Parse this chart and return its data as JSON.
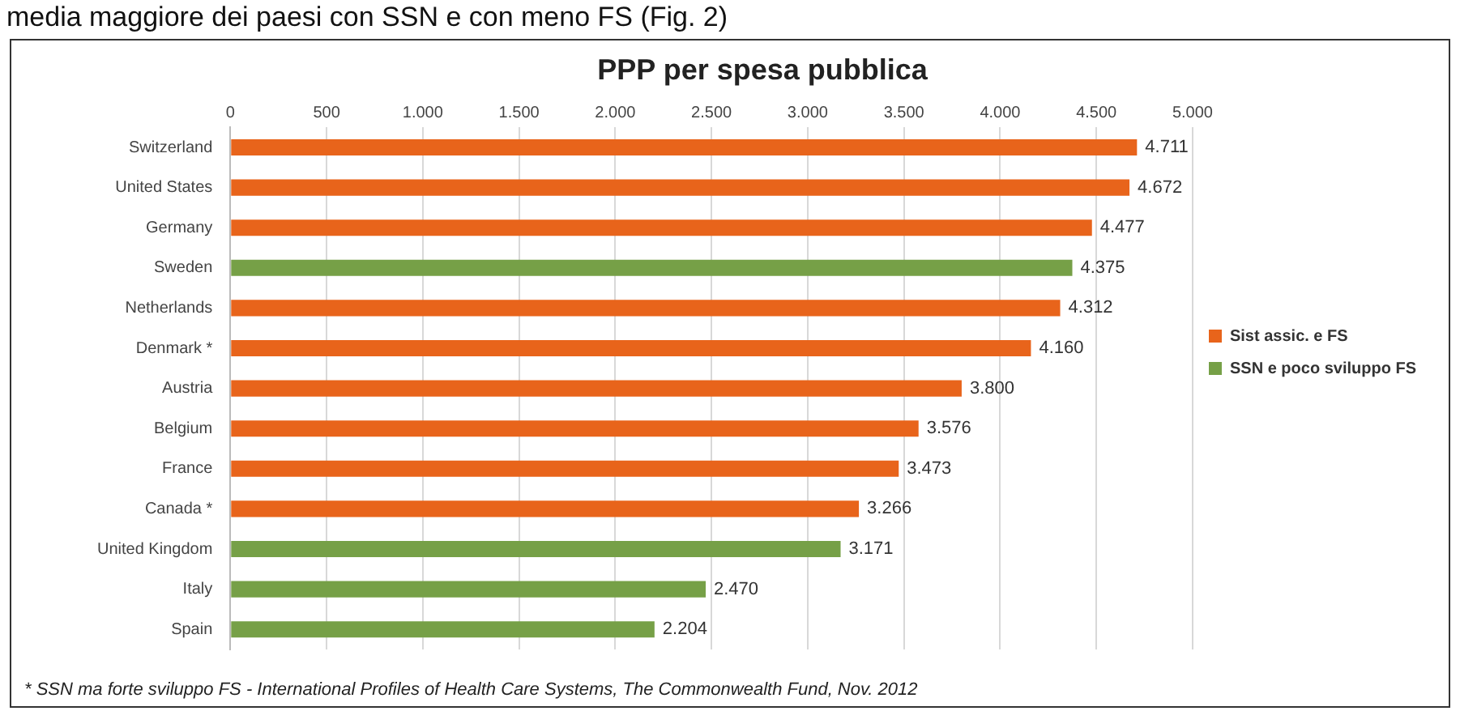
{
  "chart_data": {
    "type": "bar",
    "orientation": "horizontal",
    "title": "PPP per spesa pubblica",
    "categories": [
      "Switzerland",
      "United States",
      "Germany",
      "Sweden",
      "Netherlands",
      "Denmark *",
      "Austria",
      "Belgium",
      "France",
      "Canada *",
      "United Kingdom",
      "Italy",
      "Spain"
    ],
    "series": [
      {
        "name": "Sist assic. e FS",
        "color": "#e8641b",
        "values": [
          4711,
          4672,
          4477,
          null,
          4312,
          4160,
          3800,
          3576,
          3473,
          3266,
          null,
          null,
          null
        ],
        "value_labels": [
          "4.711",
          "4.672",
          "4.477",
          null,
          "4.312",
          "4.160",
          "3.800",
          "3.576",
          "3.473",
          "3.266",
          null,
          null,
          null
        ]
      },
      {
        "name": "SSN e poco sviluppo FS",
        "color": "#76a047",
        "values": [
          null,
          null,
          null,
          4375,
          null,
          null,
          null,
          null,
          null,
          null,
          3171,
          2470,
          2204
        ],
        "value_labels": [
          null,
          null,
          null,
          "4.375",
          null,
          null,
          null,
          null,
          null,
          null,
          "3.171",
          "2.470",
          "2.204"
        ]
      }
    ],
    "xlim": [
      0,
      5000
    ],
    "xticks": [
      0,
      500,
      {
        "value": 1000,
        "label": "1.000"
      },
      {
        "value": 1500,
        "label": "1.500"
      },
      {
        "value": 2000,
        "label": "2.000"
      },
      {
        "value": 2500,
        "label": "2.500"
      },
      {
        "value": 3000,
        "label": "3.000"
      },
      {
        "value": 3500,
        "label": "3.500"
      },
      {
        "value": 4000,
        "label": "4.000"
      },
      {
        "value": 4500,
        "label": "4.500"
      },
      {
        "value": 5000,
        "label": "5.000"
      }
    ],
    "grid": "x",
    "legend": "right",
    "annotations": [
      "media maggiore dei paesi con SSN e con meno FS (Fig. 2)",
      "* SSN ma forte sviluppo FS - International Profiles of Health Care Systems, The Commonwealth Fund, Nov. 2012"
    ]
  }
}
